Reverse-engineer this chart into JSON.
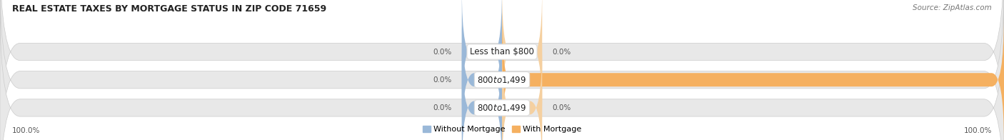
{
  "title": "REAL ESTATE TAXES BY MORTGAGE STATUS IN ZIP CODE 71659",
  "source": "Source: ZipAtlas.com",
  "categories": [
    "Less than $800",
    "$800 to $1,499",
    "$800 to $1,499"
  ],
  "without_mortgage": [
    0.0,
    0.0,
    0.0
  ],
  "with_mortgage": [
    0.0,
    100.0,
    0.0
  ],
  "color_without": "#9ab8d8",
  "color_with": "#f5b060",
  "color_with_faint": "#f5d0a0",
  "bg_bar": "#e8e8e8",
  "xlim_left": -100,
  "xlim_right": 100,
  "legend_labels": [
    "Without Mortgage",
    "With Mortgage"
  ],
  "left_axis_label": "100.0%",
  "right_axis_label": "100.0%",
  "title_fontsize": 9,
  "source_fontsize": 7.5,
  "bar_label_fontsize": 7.5,
  "axis_label_fontsize": 7.5,
  "cat_label_fontsize": 8.5
}
